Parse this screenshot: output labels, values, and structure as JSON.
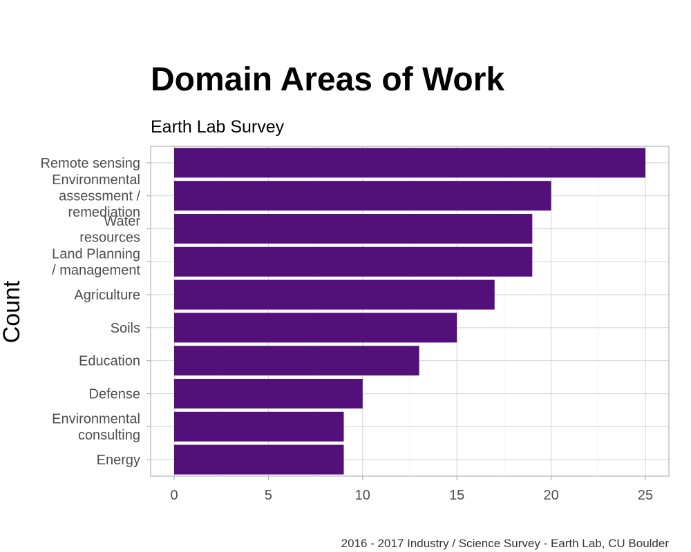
{
  "chart_data": {
    "type": "bar",
    "orientation": "horizontal",
    "title": "Domain Areas of Work",
    "subtitle": "Earth Lab Survey",
    "ylabel": "Count",
    "xlabel": "",
    "caption": "2016 - 2017 Industry / Science Survey - Earth Lab, CU Boulder",
    "categories": [
      [
        "Remote sensing"
      ],
      [
        "Environmental",
        "assessment /",
        "remediation"
      ],
      [
        "Water",
        "resources"
      ],
      [
        "Land Planning",
        "/ management"
      ],
      [
        "Agriculture"
      ],
      [
        "Soils"
      ],
      [
        "Education"
      ],
      [
        "Defense"
      ],
      [
        "Environmental",
        "consulting"
      ],
      [
        "Energy"
      ]
    ],
    "values": [
      25,
      20,
      19,
      19,
      17,
      15,
      13,
      10,
      9,
      9
    ],
    "xlim": [
      0,
      26
    ],
    "xticks": [
      0,
      5,
      10,
      15,
      20,
      25
    ],
    "bar_color": "#54107a",
    "grid": true
  }
}
